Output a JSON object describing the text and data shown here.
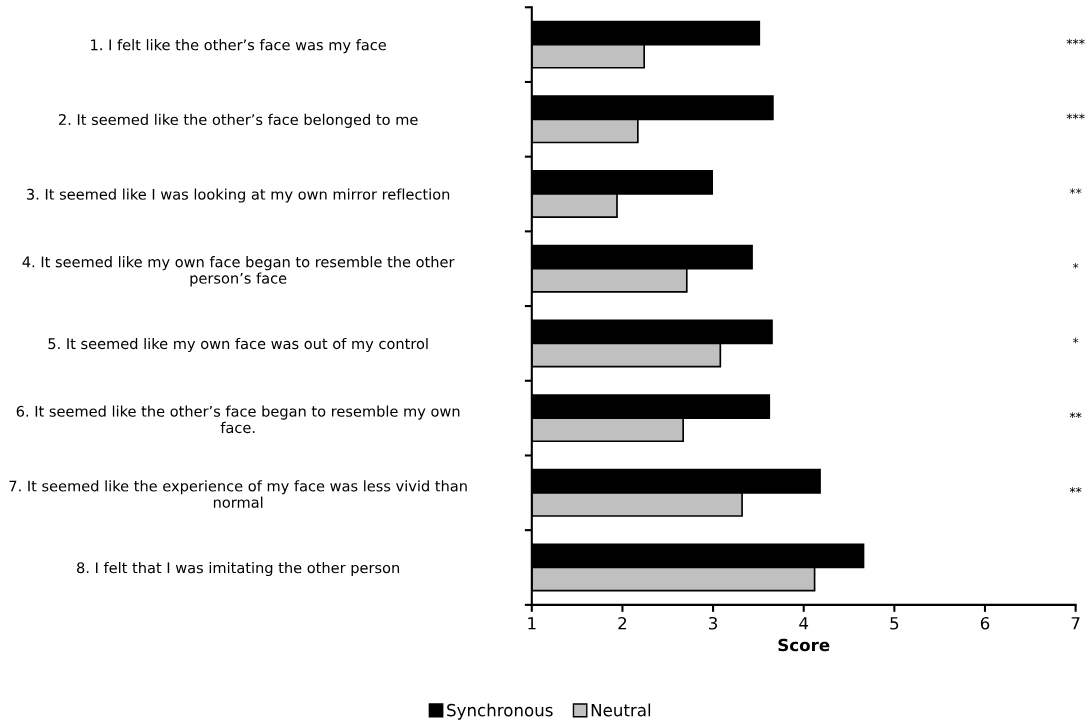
{
  "chart_data": {
    "type": "bar",
    "orientation": "horizontal",
    "xlabel": "Score",
    "categories": [
      "1. I felt like the other’s face was my face",
      "2. It seemed like the other’s face belonged to me",
      "3. It seemed like I was looking at my own mirror reflection",
      "4. It seemed like my own face began to resemble the other\nperson’s face",
      "5. It seemed like my own face was out of my control",
      "6. It seemed like the other’s face began to resemble my own\nface.",
      "7. It seemed like the experience of my face was less vivid than\nnormal",
      "8. I felt that I was imitating the other person"
    ],
    "series": [
      {
        "name": "Synchronous",
        "color": "#000000",
        "values": [
          3.51,
          3.66,
          2.99,
          3.43,
          3.65,
          3.62,
          4.18,
          4.66
        ]
      },
      {
        "name": "Neutral",
        "color": "#c0c0c0",
        "values": [
          2.24,
          2.17,
          1.94,
          2.71,
          3.08,
          2.67,
          3.32,
          4.12
        ]
      }
    ],
    "xlim": [
      1,
      7
    ],
    "xticks": [
      1,
      2,
      3,
      4,
      5,
      6,
      7
    ],
    "grid": false,
    "legend": "bottom",
    "annotations": [
      "***",
      "***",
      "**",
      "*",
      "*",
      "**",
      "**"
    ]
  }
}
